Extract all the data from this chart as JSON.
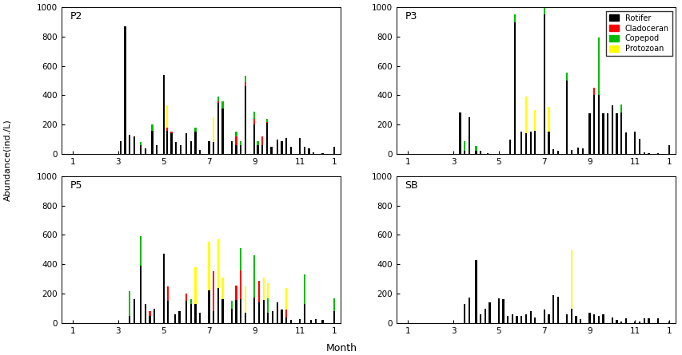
{
  "ylabel": "Abundance(ind./L)",
  "xlabel": "Month",
  "ylim": [
    0,
    1000
  ],
  "yticks": [
    0,
    200,
    400,
    600,
    800,
    1000
  ],
  "colors": {
    "Rotifer": "#000000",
    "Cladoceran": "#ff0000",
    "Copepod": "#00bb00",
    "Protozoan": "#ffff00"
  },
  "legend_labels": [
    "Rotifer",
    "Cladoceran",
    "Copepod",
    "Protozoan"
  ],
  "stations": [
    "P2",
    "P3",
    "P5",
    "SB"
  ],
  "bar_width": 0.08,
  "xlim": [
    0.5,
    12.8
  ],
  "xtick_positions": [
    1,
    3,
    5,
    7,
    9,
    11
  ],
  "xtick_labels": [
    "1",
    "3",
    "5",
    "7",
    "9",
    "11"
  ],
  "P2": {
    "x": [
      3.1,
      3.3,
      3.5,
      3.7,
      4.0,
      4.2,
      4.5,
      4.7,
      5.0,
      5.15,
      5.35,
      5.55,
      5.75,
      6.0,
      6.2,
      6.4,
      6.6,
      7.0,
      7.2,
      7.4,
      7.6,
      8.0,
      8.2,
      8.4,
      8.6,
      9.0,
      9.15,
      9.35,
      9.55,
      9.75,
      10.0,
      10.2,
      10.4,
      10.6,
      11.0,
      11.2,
      11.4,
      11.6,
      12.0,
      12.5
    ],
    "rotifer": [
      90,
      870,
      130,
      120,
      60,
      40,
      160,
      60,
      540,
      160,
      140,
      80,
      60,
      140,
      90,
      150,
      30,
      90,
      80,
      350,
      310,
      90,
      60,
      60,
      460,
      200,
      60,
      60,
      210,
      50,
      100,
      90,
      110,
      50,
      110,
      50,
      40,
      10,
      5,
      50
    ],
    "cladoceran": [
      0,
      0,
      0,
      0,
      0,
      0,
      0,
      0,
      0,
      20,
      10,
      0,
      0,
      0,
      0,
      0,
      0,
      0,
      0,
      10,
      0,
      0,
      60,
      0,
      30,
      40,
      0,
      60,
      10,
      0,
      0,
      0,
      0,
      0,
      0,
      0,
      0,
      0,
      0,
      0
    ],
    "copepod": [
      0,
      0,
      0,
      0,
      20,
      0,
      40,
      0,
      0,
      0,
      0,
      0,
      0,
      0,
      0,
      30,
      0,
      0,
      0,
      30,
      50,
      0,
      30,
      30,
      40,
      50,
      30,
      0,
      20,
      0,
      0,
      0,
      0,
      0,
      0,
      0,
      0,
      0,
      0,
      0
    ],
    "protozoan": [
      0,
      0,
      0,
      0,
      0,
      0,
      0,
      0,
      0,
      150,
      0,
      0,
      0,
      0,
      0,
      0,
      0,
      0,
      170,
      0,
      0,
      0,
      0,
      0,
      0,
      0,
      0,
      0,
      0,
      0,
      0,
      0,
      0,
      0,
      0,
      0,
      0,
      0,
      0,
      0
    ]
  },
  "P3": {
    "x": [
      3.1,
      3.3,
      3.5,
      3.7,
      4.0,
      4.2,
      4.5,
      5.5,
      5.7,
      6.0,
      6.2,
      6.4,
      6.6,
      7.0,
      7.2,
      7.4,
      7.6,
      8.0,
      8.2,
      8.5,
      8.7,
      9.0,
      9.2,
      9.4,
      9.6,
      9.8,
      10.0,
      10.2,
      10.4,
      10.6,
      11.0,
      11.2,
      11.4,
      11.6,
      12.0,
      12.5
    ],
    "rotifer": [
      0,
      285,
      25,
      250,
      25,
      20,
      5,
      100,
      895,
      150,
      140,
      155,
      160,
      950,
      155,
      35,
      25,
      500,
      30,
      45,
      40,
      280,
      400,
      400,
      275,
      280,
      330,
      280,
      285,
      145,
      150,
      105,
      10,
      5,
      5,
      60
    ],
    "cladoceran": [
      0,
      0,
      0,
      0,
      0,
      0,
      0,
      0,
      0,
      0,
      0,
      0,
      0,
      0,
      0,
      0,
      0,
      0,
      0,
      0,
      0,
      0,
      50,
      0,
      0,
      0,
      0,
      0,
      0,
      0,
      0,
      0,
      0,
      0,
      0,
      0
    ],
    "copepod": [
      0,
      0,
      65,
      0,
      30,
      0,
      0,
      0,
      55,
      0,
      0,
      0,
      0,
      55,
      0,
      0,
      0,
      55,
      0,
      0,
      0,
      0,
      0,
      395,
      0,
      0,
      0,
      0,
      50,
      0,
      0,
      0,
      0,
      0,
      0,
      0
    ],
    "protozoan": [
      0,
      0,
      0,
      0,
      0,
      0,
      0,
      0,
      0,
      0,
      250,
      0,
      140,
      0,
      165,
      0,
      0,
      0,
      0,
      0,
      0,
      0,
      0,
      0,
      0,
      0,
      0,
      0,
      0,
      0,
      0,
      0,
      0,
      0,
      0,
      0
    ]
  },
  "P5": {
    "x": [
      3.5,
      3.7,
      4.0,
      4.2,
      4.4,
      4.6,
      5.0,
      5.2,
      5.5,
      5.7,
      6.0,
      6.2,
      6.4,
      6.6,
      7.0,
      7.2,
      7.4,
      7.6,
      8.0,
      8.2,
      8.4,
      8.6,
      9.0,
      9.2,
      9.4,
      9.6,
      9.8,
      10.0,
      10.2,
      10.4,
      10.6,
      11.0,
      11.2,
      11.5,
      11.7,
      12.0,
      12.5
    ],
    "rotifer": [
      50,
      160,
      390,
      130,
      50,
      100,
      470,
      150,
      60,
      80,
      150,
      130,
      130,
      70,
      225,
      80,
      240,
      160,
      100,
      155,
      160,
      70,
      175,
      140,
      155,
      70,
      80,
      140,
      90,
      40,
      20,
      25,
      130,
      20,
      25,
      20,
      80
    ],
    "cladoceran": [
      0,
      0,
      0,
      0,
      30,
      0,
      0,
      100,
      0,
      0,
      50,
      0,
      0,
      0,
      0,
      270,
      0,
      0,
      0,
      100,
      200,
      0,
      0,
      150,
      0,
      0,
      0,
      0,
      0,
      50,
      0,
      0,
      0,
      0,
      0,
      0,
      0
    ],
    "copepod": [
      165,
      0,
      200,
      0,
      0,
      0,
      0,
      0,
      0,
      0,
      0,
      30,
      0,
      0,
      0,
      0,
      0,
      0,
      50,
      0,
      150,
      0,
      285,
      0,
      0,
      100,
      0,
      0,
      0,
      0,
      0,
      0,
      200,
      0,
      0,
      0,
      90
    ],
    "protozoan": [
      0,
      0,
      0,
      0,
      0,
      0,
      0,
      0,
      0,
      0,
      0,
      0,
      250,
      0,
      330,
      0,
      330,
      150,
      0,
      0,
      0,
      180,
      0,
      0,
      155,
      100,
      0,
      0,
      0,
      150,
      0,
      0,
      0,
      0,
      0,
      0,
      0
    ]
  },
  "SB": {
    "x": [
      3.5,
      3.7,
      4.0,
      4.2,
      4.4,
      4.6,
      5.0,
      5.2,
      5.4,
      5.6,
      5.8,
      6.0,
      6.2,
      6.4,
      6.6,
      7.0,
      7.2,
      7.4,
      7.6,
      8.0,
      8.2,
      8.4,
      8.6,
      9.0,
      9.2,
      9.4,
      9.6,
      10.0,
      10.2,
      10.4,
      10.6,
      11.0,
      11.2,
      11.4,
      11.6,
      12.0,
      12.5
    ],
    "rotifer": [
      130,
      175,
      430,
      60,
      100,
      140,
      170,
      160,
      50,
      60,
      50,
      50,
      60,
      80,
      40,
      90,
      60,
      190,
      180,
      60,
      100,
      50,
      25,
      70,
      60,
      50,
      60,
      40,
      20,
      10,
      30,
      10,
      10,
      30,
      30,
      30,
      10
    ],
    "cladoceran": [
      0,
      0,
      0,
      0,
      0,
      0,
      0,
      0,
      0,
      0,
      0,
      0,
      0,
      0,
      0,
      0,
      0,
      0,
      0,
      0,
      0,
      0,
      0,
      0,
      0,
      0,
      0,
      0,
      0,
      0,
      0,
      0,
      0,
      0,
      0,
      0,
      0
    ],
    "copepod": [
      0,
      0,
      0,
      0,
      0,
      0,
      0,
      0,
      0,
      0,
      0,
      0,
      0,
      0,
      0,
      0,
      0,
      0,
      0,
      0,
      0,
      0,
      0,
      0,
      0,
      0,
      0,
      0,
      0,
      0,
      0,
      0,
      0,
      0,
      0,
      0,
      0
    ],
    "protozoan": [
      0,
      0,
      0,
      0,
      0,
      0,
      0,
      0,
      0,
      0,
      0,
      0,
      0,
      0,
      0,
      0,
      0,
      0,
      0,
      0,
      400,
      0,
      0,
      0,
      0,
      0,
      0,
      0,
      0,
      0,
      0,
      0,
      0,
      0,
      0,
      0,
      0
    ]
  }
}
